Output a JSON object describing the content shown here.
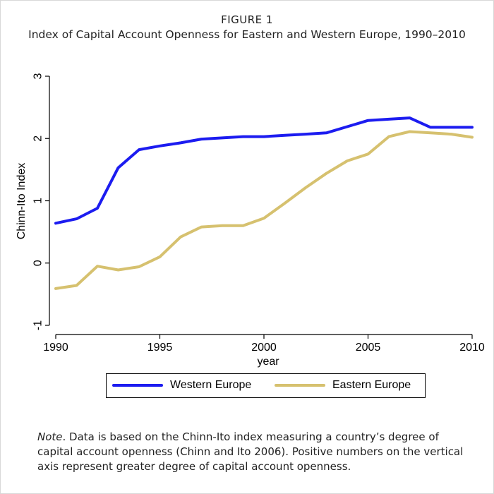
{
  "figure": {
    "label": "FIGURE 1",
    "title": "Index of Capital Account Openness for Eastern and Western Europe, 1990–2010"
  },
  "note": {
    "lead": "Note",
    "text": ". Data is based on the Chinn-Ito index measuring a country’s degree of capital account openness (Chinn and Ito 2006). Positive numbers on the vertical axis represent greater degree of capital account openness."
  },
  "chart_data": {
    "type": "line",
    "title": "Index of Capital Account Openness for Eastern and Western Europe, 1990–2010",
    "xlabel": "year",
    "ylabel": "Chinn-Ito Index",
    "xlim": [
      1990,
      2010
    ],
    "ylim": [
      -1,
      3
    ],
    "xticks": [
      1990,
      1995,
      2000,
      2005,
      2010
    ],
    "yticks": [
      -1,
      0,
      1,
      2,
      3
    ],
    "grid": false,
    "legend_position": "bottom",
    "x": [
      1990,
      1991,
      1992,
      1993,
      1994,
      1995,
      1996,
      1997,
      1998,
      1999,
      2000,
      2001,
      2002,
      2003,
      2004,
      2005,
      2006,
      2007,
      2008,
      2009,
      2010
    ],
    "series": [
      {
        "name": "Western Europe",
        "color": "#1c1cf0",
        "values": [
          0.64,
          0.71,
          0.88,
          1.53,
          1.82,
          1.88,
          1.93,
          1.99,
          2.01,
          2.03,
          2.03,
          2.05,
          2.07,
          2.09,
          2.19,
          2.29,
          2.31,
          2.33,
          2.18,
          2.18,
          2.18
        ]
      },
      {
        "name": "Eastern Europe",
        "color": "#d6c16f",
        "values": [
          -0.41,
          -0.36,
          -0.05,
          -0.11,
          -0.06,
          0.1,
          0.42,
          0.58,
          0.6,
          0.6,
          0.72,
          0.96,
          1.21,
          1.44,
          1.64,
          1.75,
          2.03,
          2.11,
          2.09,
          2.07,
          2.02
        ]
      }
    ]
  }
}
